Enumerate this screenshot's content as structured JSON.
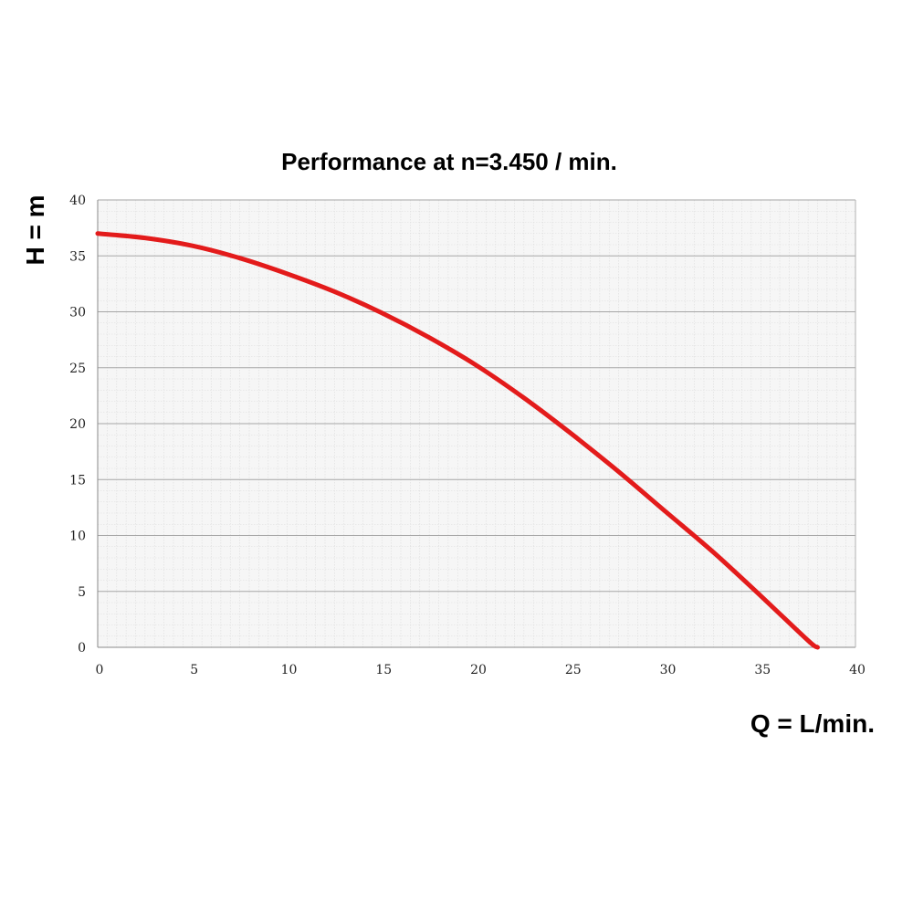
{
  "chart_data": {
    "type": "line",
    "title": "Performance at n=3.450 / min.",
    "xlabel": "Q = L/min.",
    "ylabel": "H = m",
    "xlim": [
      0,
      40
    ],
    "ylim": [
      0,
      40
    ],
    "x_ticks": [
      "0",
      "5",
      "10",
      "15",
      "20",
      "25",
      "30",
      "35",
      "40"
    ],
    "y_ticks": [
      "0",
      "5",
      "10",
      "15",
      "20",
      "25",
      "30",
      "35",
      "40"
    ],
    "grid": true,
    "series": [
      {
        "color": "#e31b1b",
        "x": [
          0,
          2.5,
          5,
          7.5,
          10,
          12.5,
          15,
          17.5,
          20,
          22.5,
          25,
          27.5,
          30,
          32.5,
          35,
          37.5,
          38
        ],
        "y": [
          37,
          36.6,
          35.9,
          34.8,
          33.4,
          31.8,
          29.9,
          27.7,
          25.2,
          22.3,
          19.1,
          15.7,
          12.1,
          8.5,
          4.6,
          0.6,
          0
        ]
      }
    ]
  }
}
